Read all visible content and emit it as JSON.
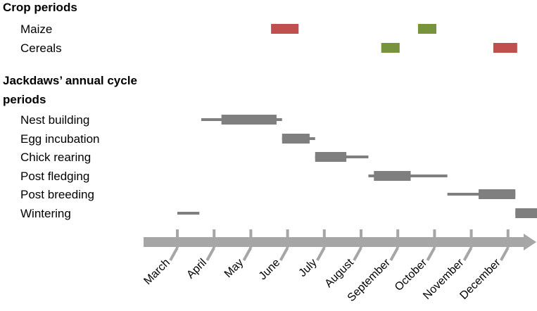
{
  "chart_data": {
    "type": "gantt",
    "sections": {
      "crops": "Crop periods",
      "jackdaws_line1": "Jackdaws’ annual cycle",
      "jackdaws_line2": "periods"
    },
    "months": [
      "March",
      "April",
      "May",
      "June",
      "July",
      "August",
      "September",
      "October",
      "November",
      "December"
    ],
    "month_start_index": 2,
    "crops": [
      {
        "label": "Maize",
        "bars": [
          {
            "start": 4.55,
            "end": 5.3,
            "color": "#c0504d"
          },
          {
            "start": 8.55,
            "end": 9.05,
            "color": "#77933c"
          }
        ]
      },
      {
        "label": "Cereals",
        "bars": [
          {
            "start": 7.55,
            "end": 8.05,
            "color": "#77933c"
          },
          {
            "start": 10.6,
            "end": 11.25,
            "color": "#c0504d"
          }
        ]
      }
    ],
    "jackdaw_periods": [
      {
        "label": "Nest building",
        "main": [
          3.2,
          4.7
        ],
        "thin": [
          2.65,
          4.85
        ]
      },
      {
        "label": "Egg incubation",
        "main": [
          4.85,
          5.6
        ],
        "thin": [
          4.85,
          5.75
        ]
      },
      {
        "label": "Chick rearing",
        "main": [
          5.75,
          6.6
        ],
        "thin": [
          5.75,
          7.2
        ]
      },
      {
        "label": "Post fledging",
        "main": [
          7.35,
          8.35
        ],
        "thin": [
          7.2,
          9.35
        ]
      },
      {
        "label": "Post breeding",
        "main": [
          10.2,
          11.2
        ],
        "thin": [
          9.35,
          11.2
        ]
      },
      {
        "label": "Wintering",
        "main": [
          11.2,
          12.3
        ],
        "thin": [
          11.2,
          12.7
        ],
        "thin_extra": [
          2.0,
          2.6
        ]
      }
    ],
    "colors": {
      "period_bar": "#7f7f7f",
      "axis_arrow": "#a6a6a6"
    }
  }
}
